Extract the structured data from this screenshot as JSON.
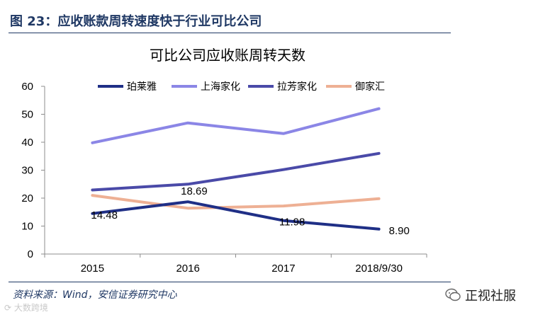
{
  "figure": {
    "title": "图 23：应收账款周转速度快于行业可比公司",
    "source": "资料来源：Wind，安信证券研究中心",
    "watermark": "大数跨境",
    "brand": "正视社服"
  },
  "chart_data": {
    "type": "line",
    "title": "可比公司应收账周转天数",
    "categories": [
      "2015",
      "2016",
      "2017",
      "2018/9/30"
    ],
    "ylim": [
      0,
      60
    ],
    "yticks": [
      0,
      10,
      20,
      30,
      40,
      50,
      60
    ],
    "grid": false,
    "legend_position": "top",
    "series": [
      {
        "name": "珀莱雅",
        "values": [
          14.48,
          18.69,
          11.98,
          8.9
        ],
        "labels": [
          "14.48",
          "18.69",
          "11.98",
          "8.90"
        ],
        "color": "#1f2f86"
      },
      {
        "name": "上海家化",
        "values": [
          39.8,
          46.9,
          43.1,
          52.0
        ],
        "color": "#8b86e6"
      },
      {
        "name": "拉芳家化",
        "values": [
          22.9,
          25.0,
          30.2,
          36.0
        ],
        "color": "#4a4aa8"
      },
      {
        "name": "御家汇",
        "values": [
          21.0,
          16.4,
          17.2,
          19.8
        ],
        "color": "#eeb094"
      }
    ]
  }
}
